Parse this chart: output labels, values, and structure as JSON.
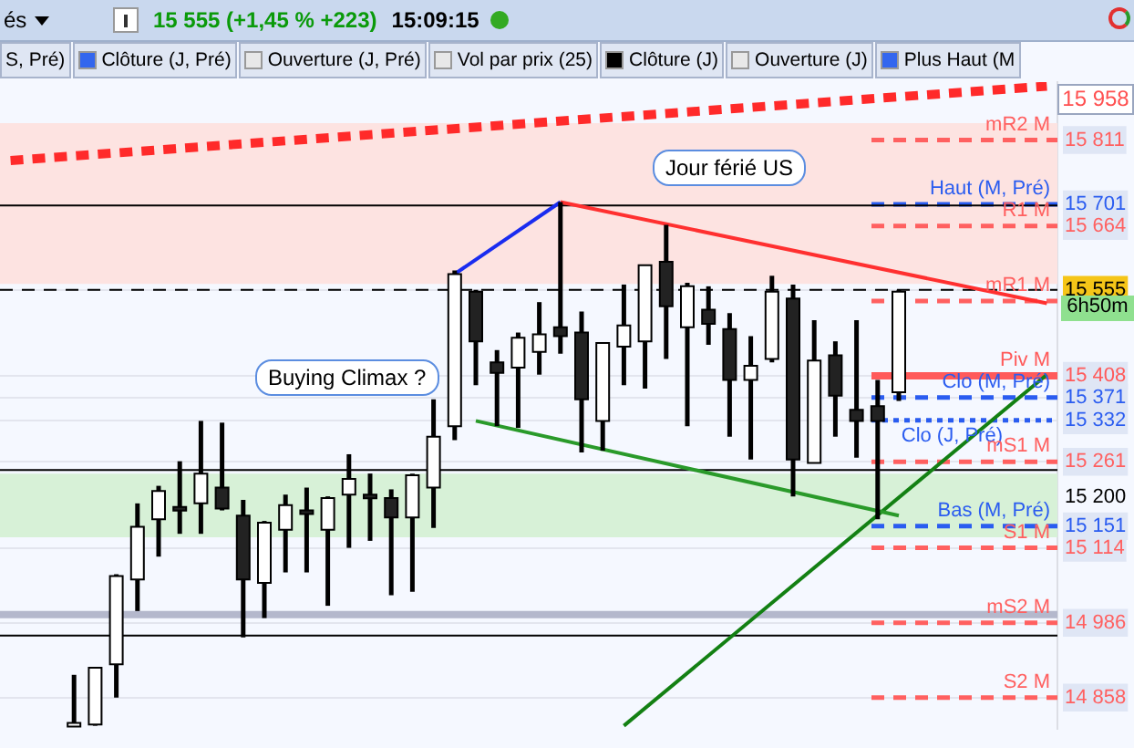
{
  "chart_data": {
    "type": "candlestick",
    "title": "15 555 (+1,45 % +223)",
    "subtitle": "15:09:15",
    "categories": [
      null,
      null,
      null,
      null,
      null,
      null,
      null,
      null,
      null,
      null,
      null,
      null,
      null,
      null,
      null,
      null,
      null,
      null,
      null,
      null,
      null,
      null,
      null,
      null,
      null,
      null,
      null,
      null,
      null,
      null,
      null,
      null,
      null,
      null,
      null,
      null,
      null,
      null,
      null,
      null,
      null,
      null,
      null,
      null,
      null,
      null,
      null,
      null,
      null,
      null
    ],
    "ohlc": [
      null,
      null,
      null,
      [
        14812,
        14897,
        14810,
        14815
      ],
      [
        14812,
        14909,
        14810,
        14909
      ],
      [
        14915,
        15069,
        14858,
        15066
      ],
      [
        15060,
        15190,
        15006,
        15150
      ],
      [
        15163,
        15220,
        15099,
        15211
      ],
      [
        15184,
        15262,
        15138,
        15181
      ],
      [
        15190,
        15331,
        15138,
        15241
      ],
      [
        15217,
        15328,
        15178,
        15181
      ],
      [
        15169,
        15196,
        14961,
        15060
      ],
      [
        15054,
        15160,
        14994,
        15157
      ],
      [
        15145,
        15205,
        15072,
        15187
      ],
      [
        15178,
        15217,
        15072,
        15175
      ],
      [
        15145,
        15202,
        15015,
        15199
      ],
      [
        15205,
        15274,
        15114,
        15232
      ],
      [
        15205,
        15241,
        15126,
        15202
      ],
      [
        15199,
        15214,
        15033,
        15166
      ],
      [
        15166,
        15241,
        15039,
        15238
      ],
      [
        15217,
        15368,
        15148,
        15304
      ],
      [
        15322,
        15588,
        15298,
        15582
      ],
      [
        15552,
        15555,
        15392,
        15467
      ],
      [
        15431,
        15452,
        15322,
        15413
      ],
      [
        15422,
        15482,
        15319,
        15473
      ],
      [
        15449,
        15534,
        15410,
        15479
      ],
      [
        15491,
        15705,
        15446,
        15476
      ],
      [
        15482,
        15518,
        15277,
        15368
      ],
      [
        15331,
        15464,
        15280,
        15464
      ],
      [
        15458,
        15564,
        15392,
        15494
      ],
      [
        15467,
        15597,
        15386,
        15597
      ],
      [
        15603,
        15666,
        15437,
        15527
      ],
      [
        15491,
        15567,
        15322,
        15561
      ],
      [
        15521,
        15561,
        15461,
        15497
      ],
      [
        15488,
        15515,
        15304,
        15401
      ],
      [
        15401,
        15476,
        15265,
        15425
      ],
      [
        15437,
        15579,
        15431,
        15552
      ],
      [
        15540,
        15564,
        15202,
        15265
      ],
      [
        15259,
        15503,
        15259,
        15434
      ],
      [
        15443,
        15467,
        15304,
        15374
      ],
      [
        15350,
        15503,
        15268,
        15331
      ],
      [
        15356,
        15401,
        15163,
        15331
      ],
      [
        15380,
        15555,
        15365,
        15552
      ],
      null,
      null,
      null,
      null,
      null,
      null,
      null
    ],
    "series": [
      {
        "type": "line",
        "color": "#ff2a2a",
        "line_style": "dashed",
        "values": [
          15776,
          null,
          null,
          null,
          null,
          null,
          null,
          null,
          null,
          null,
          null,
          null,
          null,
          null,
          null,
          null,
          null,
          null,
          null,
          null,
          null,
          null,
          null,
          null,
          null,
          null,
          null,
          null,
          null,
          null,
          null,
          null,
          null,
          null,
          null,
          null,
          null,
          null,
          null,
          null,
          null,
          null,
          null,
          null,
          null,
          null,
          null,
          null,
          null,
          15903
        ]
      },
      {
        "type": "line",
        "color": "#1a2cf0",
        "line_style": "solid",
        "values": [
          null,
          null,
          null,
          null,
          null,
          null,
          null,
          null,
          null,
          null,
          null,
          null,
          null,
          null,
          null,
          null,
          null,
          null,
          null,
          null,
          null,
          15582,
          null,
          null,
          null,
          null,
          15705,
          null,
          null,
          null,
          null,
          null,
          null,
          null,
          null,
          null,
          null,
          null,
          null,
          null,
          null,
          null,
          null,
          null,
          null,
          null,
          null,
          null,
          null,
          null
        ]
      },
      {
        "type": "line",
        "color": "#ff3030",
        "line_style": "solid",
        "values": [
          null,
          null,
          null,
          null,
          null,
          null,
          null,
          null,
          null,
          null,
          null,
          null,
          null,
          null,
          null,
          null,
          null,
          null,
          null,
          null,
          null,
          null,
          null,
          null,
          null,
          null,
          15705,
          null,
          null,
          null,
          null,
          null,
          null,
          null,
          null,
          null,
          null,
          null,
          null,
          null,
          null,
          null,
          null,
          null,
          null,
          null,
          null,
          null,
          null,
          15532
        ]
      },
      {
        "type": "line",
        "color": "#2a9a2a",
        "line_style": "solid",
        "values": [
          null,
          null,
          null,
          null,
          null,
          null,
          null,
          null,
          null,
          null,
          null,
          null,
          null,
          null,
          null,
          null,
          null,
          null,
          null,
          null,
          null,
          null,
          15331,
          null,
          null,
          null,
          null,
          null,
          null,
          null,
          null,
          null,
          null,
          null,
          null,
          null,
          null,
          null,
          null,
          null,
          null,
          null,
          15169,
          null,
          null,
          null,
          null,
          null,
          null,
          null
        ]
      },
      {
        "type": "line",
        "color": "#138013",
        "line_style": "solid",
        "values": [
          null,
          null,
          null,
          null,
          null,
          null,
          null,
          null,
          null,
          null,
          null,
          null,
          null,
          null,
          null,
          null,
          null,
          null,
          null,
          null,
          null,
          null,
          null,
          null,
          null,
          null,
          null,
          null,
          null,
          14810,
          null,
          null,
          null,
          null,
          null,
          null,
          null,
          null,
          null,
          null,
          null,
          null,
          null,
          null,
          null,
          null,
          null,
          null,
          null,
          15410
        ]
      }
    ],
    "ylim": [
      14805,
      15910
    ],
    "yticks": [
      15811,
      15701,
      15664,
      15555,
      15408,
      15371,
      15332,
      15261,
      15200,
      15151,
      15114,
      14986,
      14858
    ],
    "grid": "y",
    "legend": false,
    "bands": [
      {
        "axis": "y",
        "from": 15565,
        "to": 15840,
        "color": "#fde3e1"
      },
      {
        "axis": "y",
        "from": 15132,
        "to": 15241,
        "color": "#d7f1d7"
      }
    ],
    "ref_lines": [
      {
        "axis": "y",
        "value": 15811,
        "label": "mR2 M",
        "color": "#ff6060",
        "line_style": "dashed"
      },
      {
        "axis": "y",
        "value": 15701,
        "label": "Haut (M, Pré)",
        "color": "#2a5cf0",
        "line_style": "dashed"
      },
      {
        "axis": "y",
        "value": 15664,
        "label": "R1 M",
        "color": "#ff6060",
        "line_style": "dashed"
      },
      {
        "axis": "y",
        "value": 15555,
        "label": null,
        "color": "#000000",
        "line_style": "dashed"
      },
      {
        "axis": "y",
        "value": 15536,
        "label": "mR1 M",
        "color": "#ff6060",
        "line_style": "dashed"
      },
      {
        "axis": "y",
        "value": 15408,
        "label": "Piv M",
        "color": "#ff5a5a",
        "line_style": "solid"
      },
      {
        "axis": "y",
        "value": 15371,
        "label": "Clo (M, Pré)",
        "color": "#2a5cf0",
        "line_style": "dashed"
      },
      {
        "axis": "y",
        "value": 15332,
        "label": "Clo (J, Pré)",
        "color": "#2a5cf0",
        "line_style": "dotted"
      },
      {
        "axis": "y",
        "value": 15261,
        "label": "mS1 M",
        "color": "#ff6060",
        "line_style": "dashed"
      },
      {
        "axis": "y",
        "value": 15151,
        "label": "Bas (M, Pré)",
        "color": "#2a5cf0",
        "line_style": "dashed"
      },
      {
        "axis": "y",
        "value": 15114,
        "label": "S1 M",
        "color": "#ff6060",
        "line_style": "dashed"
      },
      {
        "axis": "y",
        "value": 14986,
        "label": "mS2 M",
        "color": "#ff6060",
        "line_style": "dashed"
      },
      {
        "axis": "y",
        "value": 14858,
        "label": "S2 M",
        "color": "#ff6060",
        "line_style": "dashed"
      },
      {
        "axis": "y",
        "value": 15699,
        "color": "#000000",
        "line_style": "solid"
      },
      {
        "axis": "y",
        "value": 15247,
        "color": "#000000",
        "line_style": "solid"
      },
      {
        "axis": "y",
        "value": 14964,
        "color": "#000000",
        "line_style": "solid"
      },
      {
        "axis": "y",
        "value": 15000,
        "color": "#b4b8cc",
        "line_style": "solid"
      }
    ],
    "annotations": [
      "Buying Climax ?",
      "Jour férié US",
      "6h50m",
      "15 958",
      "és",
      "S, Pré)",
      "Clôture (J, Pré)",
      "Ouverture (J, Pré)",
      "Vol par prix (25)",
      "Clôture (J)",
      "Ouverture (J)",
      "Plus Haut (M"
    ]
  }
}
